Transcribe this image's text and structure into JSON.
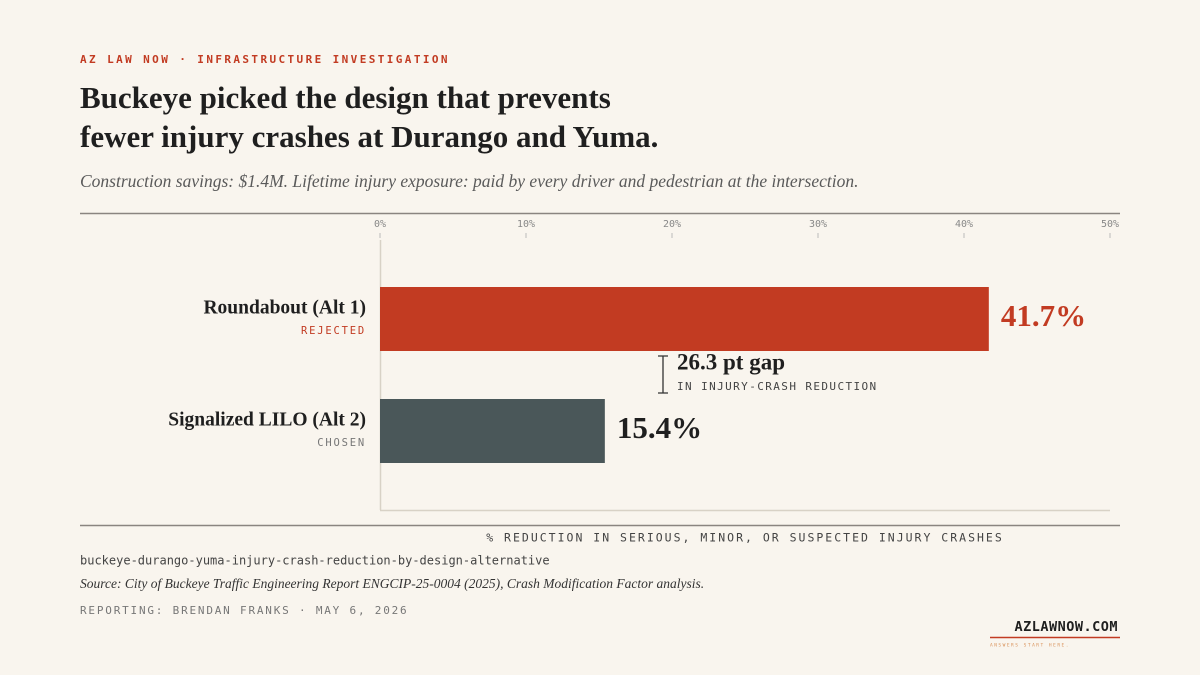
{
  "chart_data": {
    "type": "hbar",
    "kicker": "AZ LAW NOW · INFRASTRUCTURE INVESTIGATION",
    "title": [
      "Buckeye picked the design that prevents",
      "fewer injury crashes at Durango and Yuma."
    ],
    "subtitle": "Construction savings: $1.4M. Lifetime injury exposure: paid by every driver and pedestrian at the intersection.",
    "categories": [
      "Roundabout (Alt 1)",
      "Signalized LILO (Alt 2)"
    ],
    "category_notes": [
      "REJECTED",
      "CHOSEN"
    ],
    "values": [
      41.7,
      15.4
    ],
    "value_labels": [
      "41.7%",
      "15.4%"
    ],
    "colors": [
      "#c23b22",
      "#4a5759"
    ],
    "value_label_colors": [
      "#c23b22",
      "#1f1f1f"
    ],
    "xlim": [
      0,
      50
    ],
    "xticks": [
      {
        "value": 0,
        "label": "0%"
      },
      {
        "value": 10,
        "label": "10%"
      },
      {
        "value": 20,
        "label": "20%"
      },
      {
        "value": 30,
        "label": "30%"
      },
      {
        "value": 40,
        "label": "40%"
      },
      {
        "value": 50,
        "label": "50%"
      }
    ],
    "annotation": {
      "text": "26.3 pt gap",
      "subtext": "IN INJURY-CRASH REDUCTION"
    },
    "xlabel": "% REDUCTION IN SERIOUS, MINOR, OR SUSPECTED INJURY CRASHES",
    "slug": "buckeye-durango-yuma-injury-crash-reduction-by-design-alternative",
    "source": "Source: City of Buckeye Traffic Engineering Report ENGCIP-25-0004 (2025), Crash Modification Factor analysis.",
    "byline": "REPORTING: BRENDAN FRANKS · MAY 6, 2026",
    "logo": "AZLAWNOW.COM",
    "tagline": "ANSWERS START HERE."
  }
}
